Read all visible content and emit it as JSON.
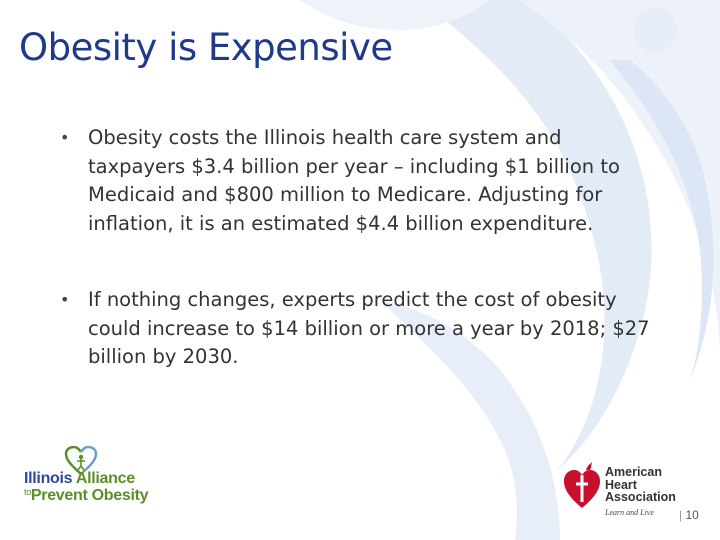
{
  "slide": {
    "title": "Obesity is Expensive",
    "bullets": [
      "Obesity costs the Illinois health care system and taxpayers $3.4 billion per year – including $1 billion to Medicaid and $800 million to Medicare. Adjusting for inflation, it is an estimated $4.4 billion expenditure.",
      "If nothing changes, experts predict the cost of obesity could increase to $14 billion or more a year by 2018; $27 billion by 2030."
    ],
    "page_number": "10"
  },
  "logos": {
    "illinois_alliance": {
      "line1_a": "Illinois",
      "line1_b": "Alliance",
      "line2_to": "to",
      "line2_b": "Prevent Obesity"
    },
    "aha": {
      "line1": "American",
      "line2": "Heart",
      "line3": "Association",
      "tagline": "Learn and Live"
    }
  },
  "colors": {
    "title": "#1f3a8a",
    "body_text": "#333333",
    "bg_swirl": "#e3ebf7",
    "aha_red": "#c8102e",
    "ia_blue": "#2b4a9a",
    "ia_green": "#5a8f2a"
  }
}
